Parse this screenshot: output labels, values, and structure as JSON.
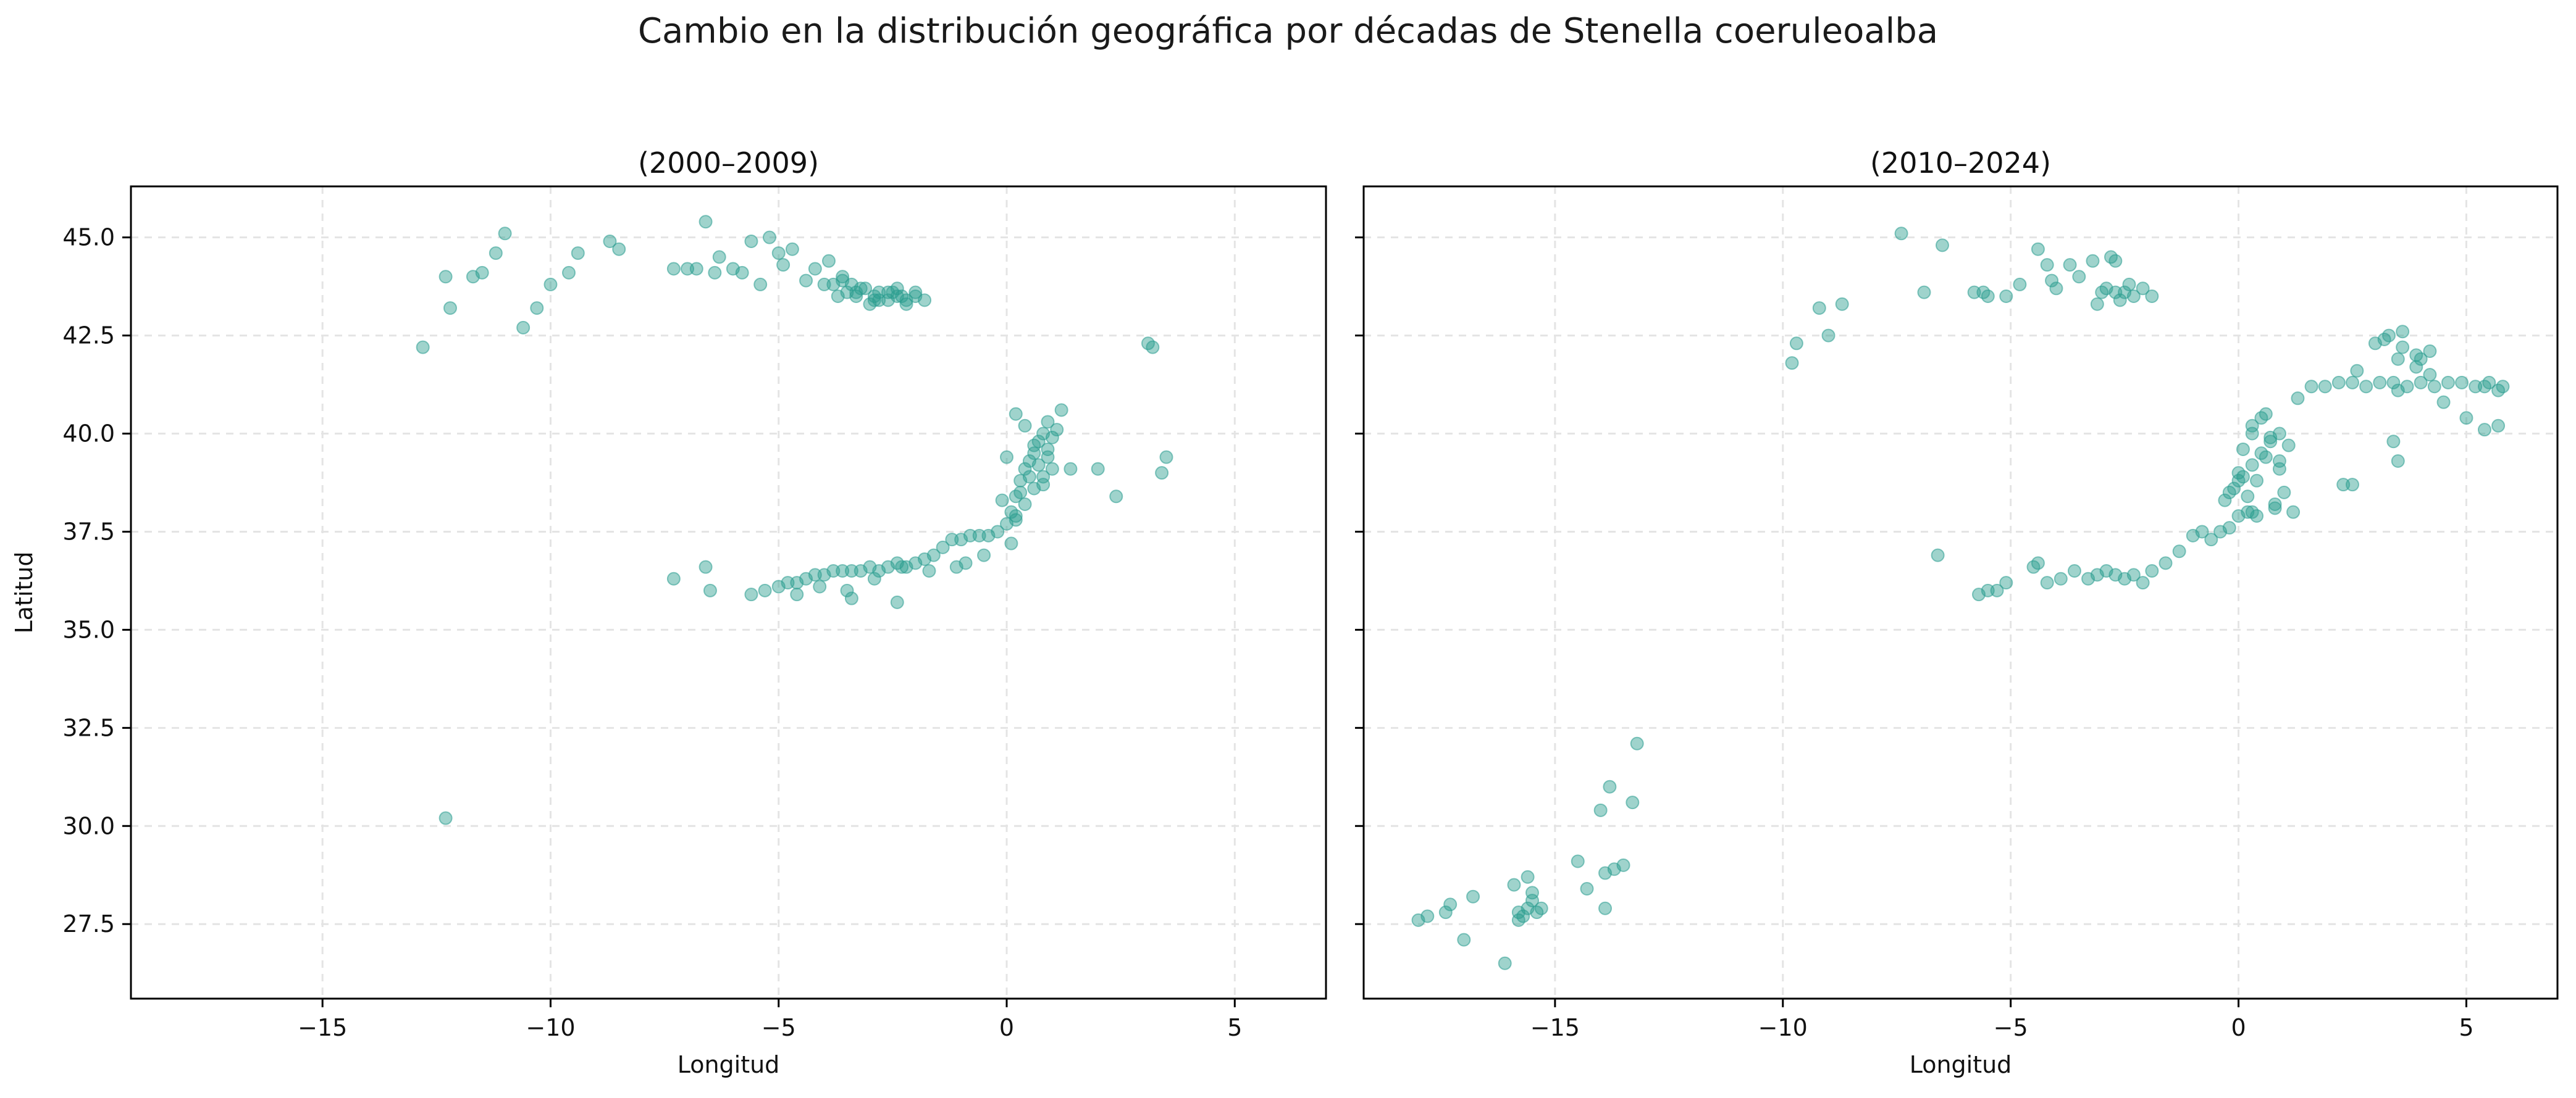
{
  "figure": {
    "suptitle": "Cambio en la distribución geográfica por décadas de Stenella coeruleoalba",
    "point_color": "#2a9d8f"
  },
  "chart_data": [
    {
      "type": "scatter",
      "title": "(2000–2009)",
      "xlabel": "Longitud",
      "ylabel": "Latitud",
      "xlim": [
        -19.2,
        7.0
      ],
      "ylim": [
        25.6,
        46.3
      ],
      "xticks": [
        -15,
        -10,
        -5,
        0,
        5
      ],
      "xtick_labels": [
        "−15",
        "−10",
        "−5",
        "0",
        "5"
      ],
      "yticks": [
        27.5,
        30.0,
        32.5,
        35.0,
        37.5,
        40.0,
        42.5,
        45.0
      ],
      "ytick_labels": [
        "27.5",
        "30.0",
        "32.5",
        "35.0",
        "37.5",
        "40.0",
        "42.5",
        "45.0"
      ],
      "grid": true,
      "series": [
        {
          "color": "#2a9d8f",
          "x": [
            -12.8,
            -12.3,
            -12.2,
            -11.7,
            -11.5,
            -11.2,
            -11.0,
            -10.6,
            -10.3,
            -10.0,
            -9.6,
            -9.4,
            -8.7,
            -8.5,
            -7.3,
            -7.0,
            -6.8,
            -6.6,
            -6.4,
            -6.3,
            -6.0,
            -5.8,
            -5.6,
            -5.4,
            -5.2,
            -5.0,
            -4.9,
            -4.7,
            -4.4,
            -4.2,
            -4.0,
            -3.9,
            -3.7,
            -3.6,
            -3.4,
            -3.3,
            -3.1,
            -2.9,
            -2.8,
            -2.6,
            -2.4,
            -2.2,
            -2.0,
            -1.8,
            -3.8,
            -3.5,
            -3.3,
            -3.0,
            -2.8,
            -2.6,
            -2.4,
            -2.2,
            -2.0,
            -3.6,
            -3.2,
            -2.9,
            -2.5,
            -2.3,
            -7.3,
            -6.5,
            -6.6,
            -5.6,
            -5.3,
            -5.0,
            -4.8,
            -4.6,
            -4.4,
            -4.2,
            -4.0,
            -3.8,
            -3.6,
            -3.4,
            -3.2,
            -3.0,
            -2.8,
            -2.6,
            -2.4,
            -2.2,
            -2.0,
            -1.8,
            -1.6,
            -1.4,
            -1.2,
            -1.0,
            -0.8,
            -0.6,
            -0.4,
            -0.2,
            0.0,
            0.2,
            -4.6,
            -4.1,
            -3.5,
            -2.9,
            -2.3,
            -1.7,
            -1.1,
            -0.5,
            0.1,
            -3.4,
            -2.4,
            -0.9,
            0.1,
            0.2,
            0.3,
            0.4,
            0.5,
            0.6,
            0.7,
            0.8,
            0.9,
            1.0,
            0.3,
            0.5,
            0.7,
            0.9,
            0.2,
            0.4,
            0.6,
            0.8,
            1.1,
            0.0,
            -0.1,
            0.2,
            0.4,
            0.6,
            0.9,
            1.2,
            1.0,
            0.8,
            1.4,
            2.0,
            2.4,
            3.1,
            3.2,
            3.4,
            3.5,
            -12.3
          ],
          "y": [
            42.2,
            44.0,
            43.2,
            44.0,
            44.1,
            44.6,
            45.1,
            42.7,
            43.2,
            43.8,
            44.1,
            44.6,
            44.9,
            44.7,
            44.2,
            44.2,
            44.2,
            45.4,
            44.1,
            44.5,
            44.2,
            44.1,
            44.9,
            43.8,
            45.0,
            44.6,
            44.3,
            44.7,
            43.9,
            44.2,
            43.8,
            44.4,
            43.5,
            44.0,
            43.8,
            43.6,
            43.7,
            43.5,
            43.4,
            43.6,
            43.5,
            43.4,
            43.6,
            43.4,
            43.8,
            43.6,
            43.5,
            43.3,
            43.6,
            43.4,
            43.7,
            43.3,
            43.5,
            43.9,
            43.7,
            43.4,
            43.6,
            43.5,
            36.3,
            36.0,
            36.6,
            35.9,
            36.0,
            36.1,
            36.2,
            36.2,
            36.3,
            36.4,
            36.4,
            36.5,
            36.5,
            36.5,
            36.5,
            36.6,
            36.5,
            36.6,
            36.7,
            36.6,
            36.7,
            36.8,
            36.9,
            37.1,
            37.3,
            37.3,
            37.4,
            37.4,
            37.4,
            37.5,
            37.7,
            37.8,
            35.9,
            36.1,
            36.0,
            36.3,
            36.6,
            36.5,
            36.6,
            36.9,
            37.2,
            35.8,
            35.7,
            36.7,
            38.0,
            38.4,
            38.8,
            39.1,
            39.3,
            39.5,
            39.8,
            40.0,
            39.6,
            39.9,
            38.5,
            38.9,
            39.2,
            39.4,
            37.9,
            38.2,
            38.6,
            38.9,
            40.1,
            39.4,
            38.3,
            40.5,
            40.2,
            39.7,
            40.3,
            40.6,
            39.1,
            38.7,
            39.1,
            39.1,
            38.4,
            42.3,
            42.2,
            39.0,
            39.4,
            30.2
          ]
        }
      ]
    },
    {
      "type": "scatter",
      "title": "(2010–2024)",
      "xlabel": "Longitud",
      "ylabel": "",
      "xlim": [
        -19.2,
        7.0
      ],
      "ylim": [
        25.6,
        46.3
      ],
      "xticks": [
        -15,
        -10,
        -5,
        0,
        5
      ],
      "xtick_labels": [
        "−15",
        "−10",
        "−5",
        "0",
        "5"
      ],
      "yticks": [
        27.5,
        30.0,
        32.5,
        35.0,
        37.5,
        40.0,
        42.5,
        45.0
      ],
      "ytick_labels": [],
      "grid": true,
      "series": [
        {
          "color": "#2a9d8f",
          "x": [
            -18.0,
            -17.8,
            -17.4,
            -17.3,
            -17.0,
            -16.8,
            -16.1,
            -15.8,
            -15.7,
            -15.6,
            -15.5,
            -15.4,
            -15.9,
            -15.6,
            -15.3,
            -15.8,
            -15.5,
            -14.5,
            -14.3,
            -14.0,
            -13.8,
            -13.7,
            -13.9,
            -13.5,
            -13.3,
            -13.2,
            -13.9,
            -9.8,
            -9.7,
            -9.2,
            -9.0,
            -8.7,
            -7.4,
            -6.9,
            -6.5,
            -5.8,
            -5.6,
            -5.5,
            -5.1,
            -4.8,
            -4.4,
            -4.2,
            -4.1,
            -4.0,
            -3.7,
            -3.5,
            -3.2,
            -3.0,
            -2.9,
            -2.8,
            -2.7,
            -2.6,
            -2.5,
            -2.3,
            -2.1,
            -1.9,
            -3.1,
            -2.7,
            -2.4,
            -6.6,
            -5.7,
            -5.5,
            -5.3,
            -5.1,
            -4.5,
            -4.4,
            -4.2,
            -3.9,
            -3.6,
            -3.3,
            -3.1,
            -2.9,
            -2.7,
            -2.5,
            -2.3,
            -2.1,
            -1.9,
            -1.6,
            -1.3,
            -1.0,
            -0.8,
            -0.6,
            -0.4,
            -0.2,
            0.0,
            0.2,
            0.3,
            -0.3,
            -0.1,
            0.1,
            0.3,
            0.5,
            0.7,
            0.9,
            1.1,
            0.0,
            0.2,
            0.4,
            0.6,
            0.8,
            1.0,
            0.1,
            0.3,
            0.5,
            0.7,
            0.9,
            -0.2,
            0.0,
            0.4,
            0.8,
            1.2,
            0.6,
            0.3,
            0.9,
            1.3,
            1.6,
            1.9,
            2.2,
            2.5,
            2.8,
            3.1,
            3.4,
            3.7,
            4.0,
            4.3,
            4.6,
            4.9,
            5.2,
            5.5,
            5.8,
            3.0,
            3.3,
            3.6,
            3.9,
            4.2,
            2.6,
            3.5,
            4.5,
            5.0,
            5.4,
            5.7,
            2.3,
            2.5,
            3.4,
            3.5,
            5.4,
            5.7,
            3.2,
            3.6,
            3.9,
            4.2,
            4.0,
            3.5
          ],
          "y": [
            27.6,
            27.7,
            27.8,
            28.0,
            27.1,
            28.2,
            26.5,
            27.8,
            27.7,
            27.9,
            28.1,
            27.8,
            28.5,
            28.7,
            27.9,
            27.6,
            28.3,
            29.1,
            28.4,
            30.4,
            31.0,
            28.9,
            28.8,
            29.0,
            30.6,
            32.1,
            27.9,
            41.8,
            42.3,
            43.2,
            42.5,
            43.3,
            45.1,
            43.6,
            44.8,
            43.6,
            43.6,
            43.5,
            43.5,
            43.8,
            44.7,
            44.3,
            43.9,
            43.7,
            44.3,
            44.0,
            44.4,
            43.6,
            43.7,
            44.5,
            43.6,
            43.4,
            43.6,
            43.5,
            43.7,
            43.5,
            43.3,
            44.4,
            43.8,
            36.9,
            35.9,
            36.0,
            36.0,
            36.2,
            36.6,
            36.7,
            36.2,
            36.3,
            36.5,
            36.3,
            36.4,
            36.5,
            36.4,
            36.3,
            36.4,
            36.2,
            36.5,
            36.7,
            37.0,
            37.4,
            37.5,
            37.3,
            37.5,
            37.6,
            37.9,
            38.0,
            38.0,
            38.3,
            38.6,
            38.9,
            39.2,
            39.5,
            39.8,
            40.0,
            39.7,
            39.0,
            38.4,
            38.8,
            39.4,
            38.1,
            38.5,
            39.6,
            40.2,
            40.4,
            39.9,
            39.3,
            38.5,
            38.8,
            37.9,
            38.2,
            38.0,
            40.5,
            40.0,
            39.1,
            40.9,
            41.2,
            41.2,
            41.3,
            41.3,
            41.2,
            41.3,
            41.3,
            41.2,
            41.3,
            41.2,
            41.3,
            41.3,
            41.2,
            41.3,
            41.2,
            42.3,
            42.5,
            42.2,
            42.0,
            42.1,
            41.6,
            41.9,
            40.8,
            40.4,
            40.1,
            40.2,
            38.7,
            38.7,
            39.8,
            39.3,
            41.2,
            41.1,
            42.4,
            42.6,
            41.7,
            41.5,
            41.9,
            41.1
          ]
        }
      ]
    }
  ]
}
